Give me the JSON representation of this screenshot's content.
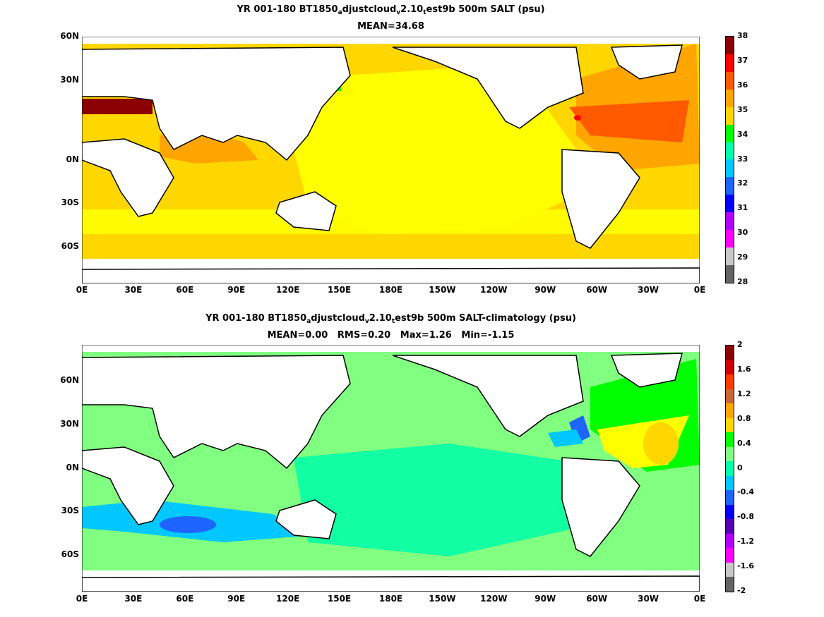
{
  "panel1": {
    "title_parts": [
      "YR 001-180 BT1850",
      "a",
      "djustcloud",
      "v",
      "2.10",
      "t",
      "est9b 500m SALT (psu)"
    ],
    "subtitle": "MEAN=34.68",
    "colorbar": {
      "ticks": [
        "38",
        "37",
        "36",
        "35",
        "34",
        "33",
        "32",
        "31",
        "30",
        "29",
        "28"
      ],
      "colors": [
        "#8b0000",
        "#ff0000",
        "#ff5a00",
        "#ffa500",
        "#ffd700",
        "#00ff00",
        "#00ffaa",
        "#00c8ff",
        "#1e64ff",
        "#0000ff",
        "#b400ff",
        "#ff00ff",
        "#c8c8c8",
        "#646464"
      ]
    }
  },
  "panel2": {
    "title_parts": [
      "YR 001-180 BT1850",
      "a",
      "djustcloud",
      "v",
      "2.10",
      "t",
      "est9b 500m SALT-climatology (psu)"
    ],
    "subtitle": "MEAN=0.00   RMS=0.20   Max=1.26   Min=-1.15",
    "colorbar": {
      "ticks": [
        "2",
        "1.6",
        "1.2",
        "0.8",
        "0.4",
        "0",
        "-0.4",
        "-0.8",
        "-1.2",
        "-1.6",
        "-2"
      ],
      "colors": [
        "#8b0000",
        "#d20000",
        "#ff3c00",
        "#cc6633",
        "#ffa500",
        "#ffd700",
        "#00ff00",
        "#80ff80",
        "#00ffaa",
        "#00c8ff",
        "#1e64ff",
        "#0000ff",
        "#5a00b4",
        "#b400ff",
        "#ff00ff",
        "#c8c8c8",
        "#646464"
      ]
    }
  },
  "axes": {
    "x_ticks": [
      "0E",
      "30E",
      "60E",
      "90E",
      "120E",
      "150E",
      "180E",
      "150W",
      "120W",
      "90W",
      "60W",
      "30W",
      "0E"
    ],
    "y_ticks": [
      "60N",
      "30N",
      "0N",
      "30S",
      "60S"
    ]
  }
}
